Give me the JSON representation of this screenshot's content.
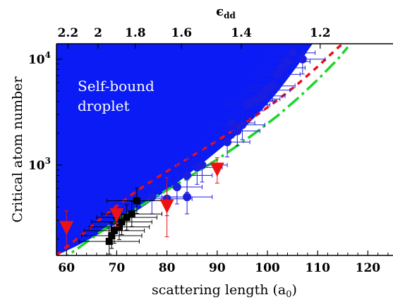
{
  "chart_data": {
    "type": "scatter",
    "xlabel": "scattering length (a",
    "xlabel_sub": "0",
    "xlabel_end": ")",
    "ylabel": "Critical atom number",
    "top_axis_label": "ϵ",
    "top_axis_label_sub": "dd",
    "xlim": [
      58,
      125
    ],
    "ylim": [
      140,
      14000
    ],
    "y_scale": "log",
    "x_ticks": [
      60,
      70,
      80,
      90,
      100,
      110,
      120
    ],
    "x_tick_labels": [
      "60",
      "70",
      "80",
      "90",
      "100",
      "110",
      "120"
    ],
    "top_ticks": [
      {
        "label": "2.2",
        "x": 60.3
      },
      {
        "label": "2",
        "x": 66.3
      },
      {
        "label": "1.8",
        "x": 73.7
      },
      {
        "label": "1.6",
        "x": 82.9
      },
      {
        "label": "1.4",
        "x": 94.8
      },
      {
        "label": "1.2",
        "x": 110.5
      }
    ],
    "y_ticks": [
      {
        "label": "10",
        "sup": "3",
        "value": 1000
      },
      {
        "label": "10",
        "sup": "4",
        "value": 10000
      }
    ],
    "region_label_line1": "Self-bound",
    "region_label_line2": "droplet",
    "region_color": "#0a1bf5",
    "region_boundary": [
      [
        58,
        140
      ],
      [
        60,
        155
      ],
      [
        62,
        172
      ],
      [
        64,
        193
      ],
      [
        66,
        218
      ],
      [
        68,
        246
      ],
      [
        70,
        280
      ],
      [
        72,
        321
      ],
      [
        74,
        370
      ],
      [
        76,
        427
      ],
      [
        78,
        496
      ],
      [
        80,
        580
      ],
      [
        82,
        680
      ],
      [
        84,
        800
      ],
      [
        86,
        950
      ],
      [
        88,
        1130
      ],
      [
        90,
        1350
      ],
      [
        92,
        1620
      ],
      [
        94,
        1950
      ],
      [
        96,
        2400
      ],
      [
        98,
        3000
      ],
      [
        100,
        3800
      ],
      [
        102,
        4900
      ],
      [
        104,
        6500
      ],
      [
        106,
        8700
      ],
      [
        108,
        12000
      ],
      [
        109,
        14000
      ]
    ],
    "series": [
      {
        "type": "line",
        "color": "#e8101a",
        "dash": "8,7",
        "points": [
          [
            58,
            140
          ],
          [
            62,
            200
          ],
          [
            66,
            290
          ],
          [
            70,
            410
          ],
          [
            74,
            570
          ],
          [
            78,
            760
          ],
          [
            82,
            1000
          ],
          [
            86,
            1300
          ],
          [
            90,
            1700
          ],
          [
            94,
            2250
          ],
          [
            98,
            3000
          ],
          [
            102,
            4100
          ],
          [
            106,
            5800
          ],
          [
            110,
            8500
          ],
          [
            114,
            12800
          ],
          [
            115,
            14000
          ]
        ]
      },
      {
        "type": "line",
        "color": "#1bd62a",
        "dash": "20,6,4,6",
        "points": [
          [
            58,
            120
          ],
          [
            62,
            160
          ],
          [
            66,
            220
          ],
          [
            70,
            300
          ],
          [
            74,
            390
          ],
          [
            78,
            510
          ],
          [
            82,
            660
          ],
          [
            86,
            860
          ],
          [
            90,
            1130
          ],
          [
            94,
            1520
          ],
          [
            98,
            2080
          ],
          [
            102,
            2920
          ],
          [
            106,
            4250
          ],
          [
            110,
            6400
          ],
          [
            114,
            10000
          ],
          [
            116,
            13000
          ]
        ]
      },
      {
        "type": "scatter",
        "marker": "circle",
        "color": "#1a1ee0",
        "points": [
          {
            "x": 77,
            "y": 500,
            "xerr": 5,
            "yerr": 0.16
          },
          {
            "x": 80,
            "y": 480,
            "xerr": 5,
            "yerr": 0.16
          },
          {
            "x": 82,
            "y": 620,
            "xerr": 5,
            "yerr": 0.16
          },
          {
            "x": 84,
            "y": 500,
            "xerr": 5,
            "yerr": 0.16
          },
          {
            "x": 84,
            "y": 800,
            "xerr": 5,
            "yerr": 0.16
          },
          {
            "x": 86,
            "y": 950,
            "xerr": 5,
            "yerr": 0.16
          },
          {
            "x": 87,
            "y": 1000,
            "xerr": 5,
            "yerr": 0.16
          },
          {
            "x": 92,
            "y": 1650,
            "xerr": 4.5,
            "yerr": 0.14
          },
          {
            "x": 93,
            "y": 2500,
            "xerr": 4.5,
            "yerr": 0.14
          },
          {
            "x": 94,
            "y": 2100,
            "xerr": 4.5,
            "yerr": 0.14
          },
          {
            "x": 95,
            "y": 2400,
            "xerr": 4.5,
            "yerr": 0.14
          },
          {
            "x": 96,
            "y": 3700,
            "xerr": 4.5,
            "yerr": 0.14
          },
          {
            "x": 97,
            "y": 4000,
            "xerr": 4.5,
            "yerr": 0.14
          },
          {
            "x": 98,
            "y": 4200,
            "xerr": 4.5,
            "yerr": 0.14
          },
          {
            "x": 99,
            "y": 4500,
            "xerr": 4.5,
            "yerr": 0.14
          },
          {
            "x": 100,
            "y": 5100,
            "xerr": 4.5,
            "yerr": 0.14
          },
          {
            "x": 101,
            "y": 5600,
            "xerr": 4.5,
            "yerr": 0.14
          },
          {
            "x": 102,
            "y": 7200,
            "xerr": 4.5,
            "yerr": 0.14
          },
          {
            "x": 103,
            "y": 8300,
            "xerr": 4.5,
            "yerr": 0.14
          },
          {
            "x": 104,
            "y": 9500,
            "xerr": 4.5,
            "yerr": 0.14
          },
          {
            "x": 105,
            "y": 11500,
            "xerr": 4.5,
            "yerr": 0.14
          },
          {
            "x": 107,
            "y": 10000,
            "xerr": 4.5,
            "yerr": 0.14
          }
        ]
      },
      {
        "type": "scatter",
        "marker": "square",
        "color": "#000000",
        "points": [
          {
            "x": 68.5,
            "y": 190,
            "xerr": 6,
            "yerr": 0.12
          },
          {
            "x": 69,
            "y": 215,
            "xerr": 6,
            "yerr": 0.12
          },
          {
            "x": 69.5,
            "y": 240,
            "xerr": 6,
            "yerr": 0.12
          },
          {
            "x": 70.5,
            "y": 260,
            "xerr": 6,
            "yerr": 0.12
          },
          {
            "x": 71,
            "y": 290,
            "xerr": 6,
            "yerr": 0.12
          },
          {
            "x": 72,
            "y": 320,
            "xerr": 6,
            "yerr": 0.12
          },
          {
            "x": 73,
            "y": 345,
            "xerr": 6,
            "yerr": 0.12
          },
          {
            "x": 74,
            "y": 460,
            "xerr": 6,
            "yerr": 0.12
          }
        ]
      },
      {
        "type": "scatter",
        "marker": "triangle-down",
        "color": "#ee1111",
        "points": [
          {
            "x": 60,
            "y": 250,
            "xerr": 0,
            "yerr": 0.17
          },
          {
            "x": 70,
            "y": 330,
            "xerr": 0,
            "yerr": 0.1
          },
          {
            "x": 80,
            "y": 400,
            "xerr": 0,
            "yerr": 0.28
          },
          {
            "x": 90,
            "y": 890,
            "xerr": 0,
            "yerr": 0.12
          }
        ]
      }
    ]
  }
}
